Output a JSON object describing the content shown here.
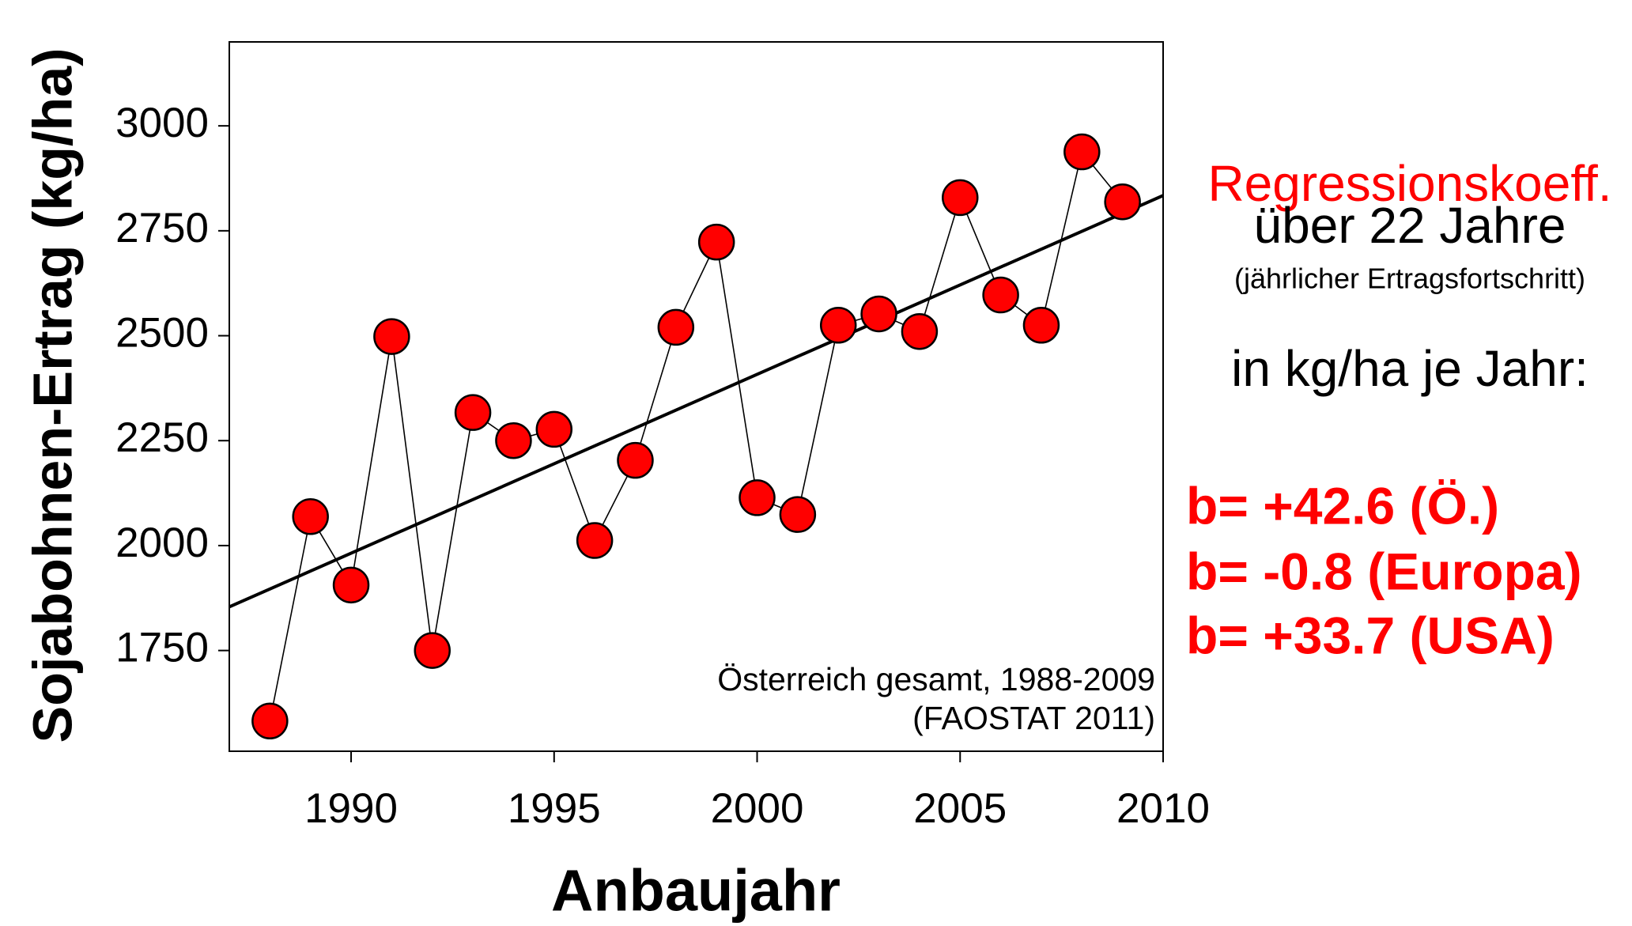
{
  "chart_data": {
    "type": "line",
    "y_label": "Sojabohnen-Ertrag (kg/ha)",
    "x_label": "Anbaujahr",
    "x": [
      1988,
      1989,
      1990,
      1991,
      1992,
      1993,
      1994,
      1995,
      1996,
      1997,
      1998,
      1999,
      2000,
      2001,
      2002,
      2003,
      2004,
      2005,
      2006,
      2007,
      2008,
      2009
    ],
    "series": [
      {
        "color": "#ff0000",
        "values": [
          1582,
          2069,
          1906,
          2498,
          1750,
          2317,
          2250,
          2277,
          2012,
          2203,
          2520,
          2723,
          2114,
          2074,
          2525,
          2552,
          2510,
          2829,
          2597,
          2525,
          2938,
          2819
        ]
      }
    ],
    "trend_line": {
      "x": [
        1987,
        2010
      ],
      "values": [
        1854,
        2834
      ],
      "color": "#000000"
    },
    "xlim": [
      1987,
      2010
    ],
    "xticks": [
      1990,
      1995,
      2000,
      2005,
      2010
    ],
    "ylim": [
      1510,
      3200
    ],
    "yticks": [
      1750,
      2000,
      2250,
      2500,
      2750,
      3000
    ],
    "source_note": [
      "Österreich gesamt, 1988-2009",
      "(FAOSTAT 2011)"
    ],
    "annotations": [
      {
        "text": "Regressionskoeff.",
        "color": "#ff0000"
      },
      {
        "text": "über 22 Jahre",
        "color": "#000000"
      },
      {
        "text": "(jährlicher Ertragsfortschritt)",
        "color": "#000000"
      },
      {
        "text": "in kg/ha je Jahr:",
        "color": "#000000"
      },
      {
        "text": "b= +42.6 (Ö.)",
        "color": "#ff0000"
      },
      {
        "text": "b= -0.8 (Europa)",
        "color": "#ff0000"
      },
      {
        "text": "b= +33.7 (USA)",
        "color": "#ff0000"
      }
    ]
  }
}
